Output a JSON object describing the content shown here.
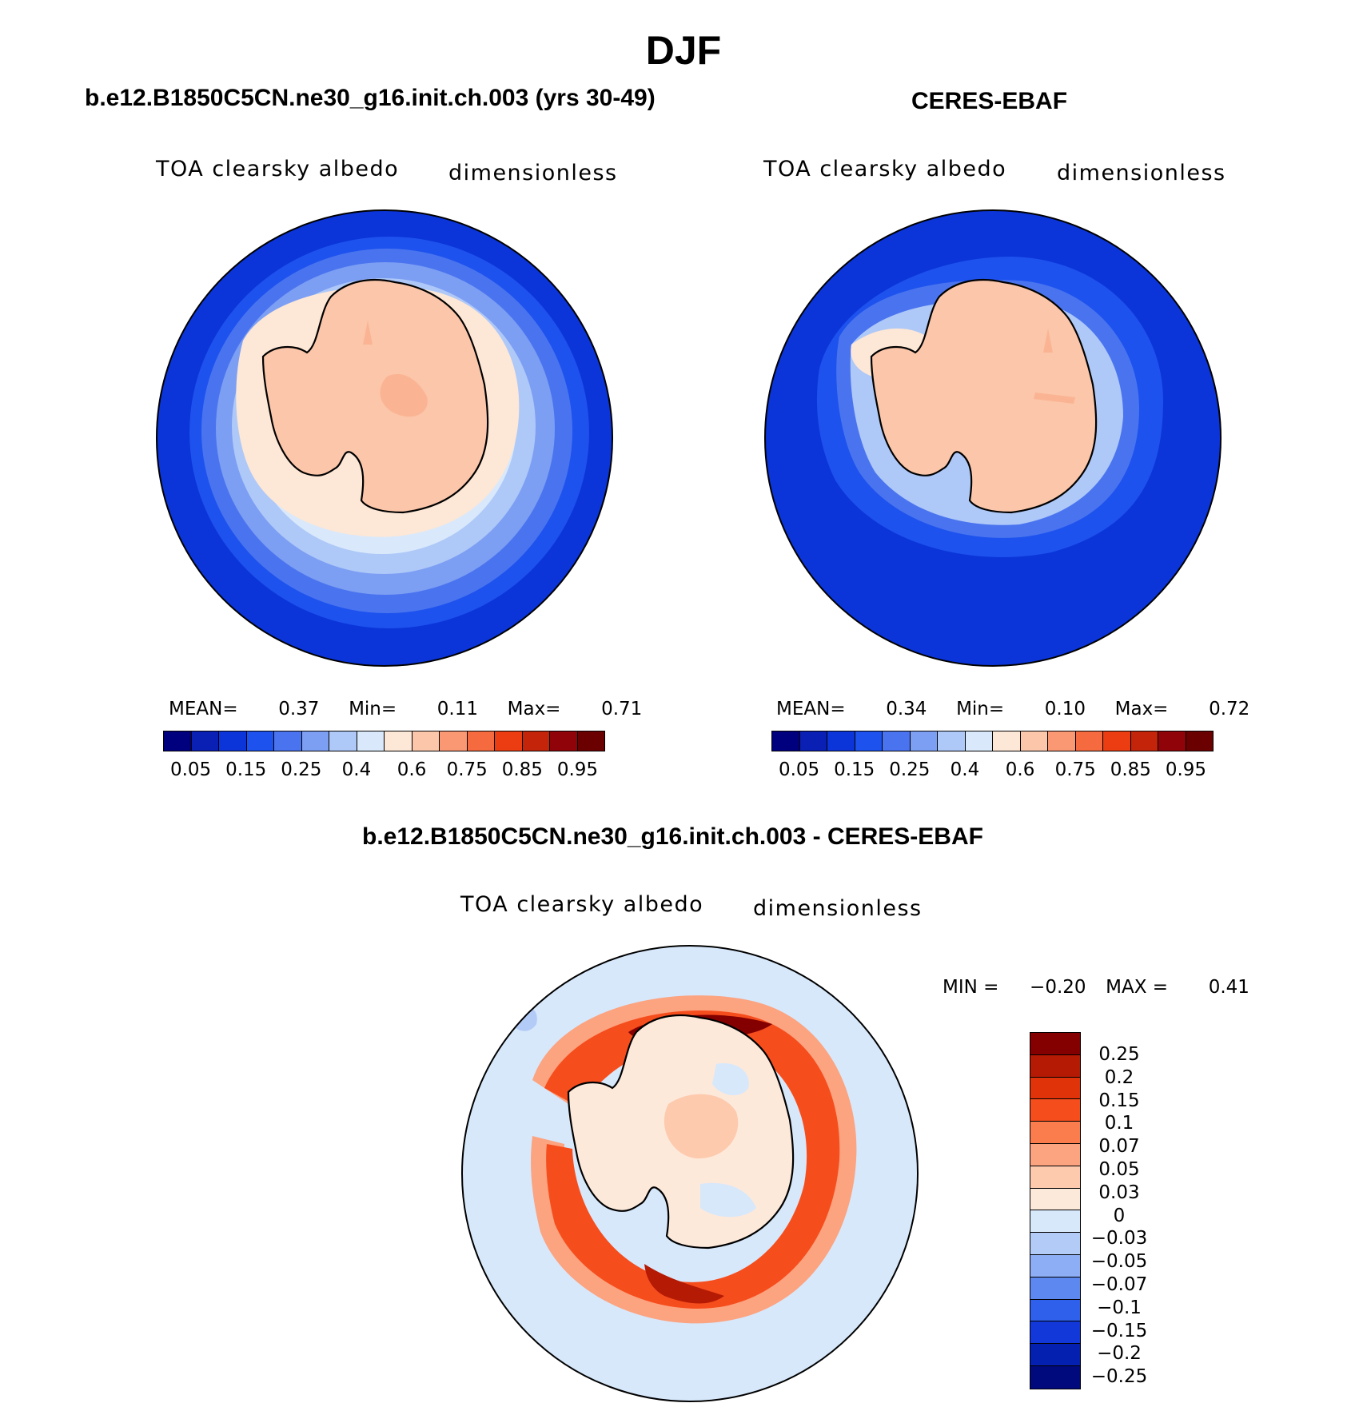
{
  "title": "DJF",
  "panel_left": {
    "title": "b.e12.B1850C5CN.ne30_g16.init.ch.003 (yrs 30-49)",
    "variable": "TOA clearsky albedo",
    "units": "dimensionless",
    "mean_label": "MEAN=",
    "mean": "0.37",
    "min_label": "Min=",
    "min": "0.11",
    "max_label": "Max=",
    "max": "0.71"
  },
  "panel_right": {
    "title": "CERES-EBAF",
    "variable": "TOA clearsky albedo",
    "units": "dimensionless",
    "mean_label": "MEAN=",
    "mean": "0.34",
    "min_label": "Min=",
    "min": "0.10",
    "max_label": "Max=",
    "max": "0.72"
  },
  "panel_diff": {
    "title": "b.e12.B1850C5CN.ne30_g16.init.ch.003 - CERES-EBAF",
    "variable": "TOA clearsky albedo",
    "units": "dimensionless",
    "min_label": "MIN =",
    "min": "−0.20",
    "max_label": "MAX =",
    "max": "0.41"
  },
  "colorbar_abs": {
    "ticks": [
      "0.05",
      "0.15",
      "0.25",
      "0.4",
      "0.6",
      "0.75",
      "0.85",
      "0.95"
    ],
    "colors": [
      "#00007f",
      "#0a1fb3",
      "#0b35d8",
      "#1d52ee",
      "#4a74ef",
      "#7c9ef3",
      "#aec8f8",
      "#d9e9fb",
      "#fde7d6",
      "#fbc6aa",
      "#fa9874",
      "#f66a3f",
      "#ec3c11",
      "#c4250a",
      "#900409",
      "#6b0000"
    ]
  },
  "colorbar_diff": {
    "ticks": [
      "0.25",
      "0.2",
      "0.15",
      "0.1",
      "0.07",
      "0.05",
      "0.03",
      "0",
      "−0.03",
      "−0.05",
      "−0.07",
      "−0.1",
      "−0.15",
      "−0.2",
      "−0.25"
    ],
    "colors": [
      "#840000",
      "#b51a05",
      "#e0330a",
      "#f64d1d",
      "#fb7c4c",
      "#fca380",
      "#fdcaae",
      "#fde9da",
      "#d7e8fb",
      "#b2cbf7",
      "#8daef4",
      "#5d88f0",
      "#2e60ec",
      "#1238da",
      "#0420b0",
      "#000a7c"
    ]
  }
}
